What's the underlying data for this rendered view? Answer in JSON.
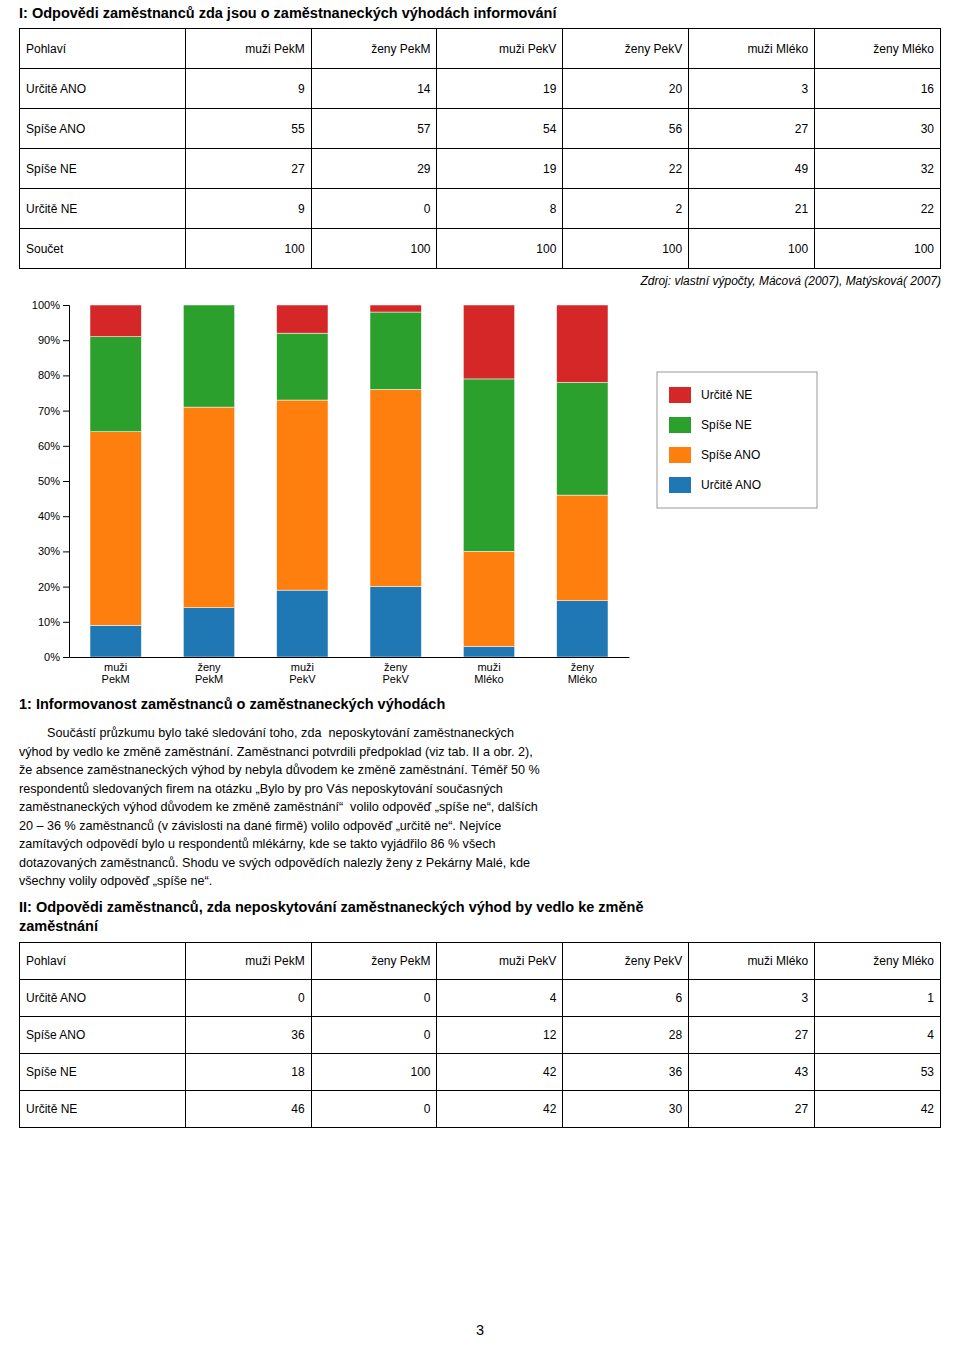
{
  "chart_data": {
    "type": "bar",
    "stacked": true,
    "title": "1: Informovanost zaměstnanců o zaměstnaneckých výhodách",
    "categories": [
      "muži\nPekM",
      "ženy\nPekM",
      "muži\nPekV",
      "ženy\nPekV",
      "muži\nMléko",
      "ženy\nMléko"
    ],
    "series": [
      {
        "name": "Určitě ANO",
        "values": [
          9,
          14,
          19,
          20,
          3,
          16
        ]
      },
      {
        "name": "Spíše ANO",
        "values": [
          55,
          57,
          54,
          56,
          27,
          30
        ]
      },
      {
        "name": "Spíše NE",
        "values": [
          27,
          29,
          19,
          22,
          49,
          32
        ]
      },
      {
        "name": "Určitě NE",
        "values": [
          9,
          0,
          8,
          2,
          21,
          22
        ]
      }
    ],
    "ylim": [
      0,
      100
    ],
    "yticks": [
      {
        "value": 0,
        "label": "0%"
      },
      {
        "value": 10,
        "label": "10%"
      },
      {
        "value": 20,
        "label": "20%"
      },
      {
        "value": 30,
        "label": "30%"
      },
      {
        "value": 40,
        "label": "40%"
      },
      {
        "value": 50,
        "label": "50%"
      },
      {
        "value": 60,
        "label": "60%"
      },
      {
        "value": 70,
        "label": "70%"
      },
      {
        "value": 80,
        "label": "80%"
      },
      {
        "value": 90,
        "label": "90%"
      },
      {
        "value": 100,
        "label": "100%"
      }
    ],
    "grid": false,
    "legend": "right"
  },
  "page": {
    "title_I": "I: Odpovědi zaměstnanců zda jsou o zaměstnaneckých výhodách informování",
    "table1": {
      "header": [
        "Pohlaví",
        "muži PekM",
        "ženy PekM",
        "muži PekV",
        "ženy PekV",
        "muži Mléko",
        "ženy Mléko"
      ],
      "rows": [
        [
          "Určitě ANO",
          "9",
          "14",
          "19",
          "20",
          "3",
          "16"
        ],
        [
          "Spíše ANO",
          "55",
          "57",
          "54",
          "56",
          "27",
          "30"
        ],
        [
          "Spíše NE",
          "27",
          "29",
          "19",
          "22",
          "49",
          "32"
        ],
        [
          "Určitě NE",
          "9",
          "0",
          "8",
          "2",
          "21",
          "22"
        ],
        [
          "Součet",
          "100",
          "100",
          "100",
          "100",
          "100",
          "100"
        ]
      ]
    },
    "source_text": "Zdroj: vlastní výpočty, Mácová (2007), Matýsková( 2007)",
    "body_lines": [
      "        Součástí průzkumu bylo také sledování toho, zda  neposkytování zaměstnaneckých",
      "výhod by vedlo ke změně zaměstnání. Zaměstnanci potvrdili předpoklad (viz tab. II a obr. 2),",
      "že absence zaměstnaneckých výhod by nebyla důvodem ke změně zaměstnání. Téměř 50 %",
      "respondentů sledovaných firem na otázku „Bylo by pro Vás neposkytování současných",
      "zaměstnaneckých výhod důvodem ke změně zaměstnání“  volilo odpověď „spíše ne“, dalších",
      "20 – 36 % zaměstnanců (v závislosti na dané firmě) volilo odpověď „určitě ne“. Nejvíce",
      "zamítavých odpovědí bylo u respondentů mlékárny, kde se takto vyjádřilo 86 % všech",
      "dotazovaných zaměstnanců. Shodu ve svých odpovědích nalezly ženy z Pekárny Malé, kde",
      "všechny volily odpověď „spíše ne“."
    ],
    "title_II": [
      "II: Odpovědi zaměstnanců, zda neposkytování zaměstnaneckých výhod by vedlo ke změně",
      "zaměstnání"
    ],
    "table2": {
      "header": [
        "Pohlaví",
        "muži PekM",
        "ženy PekM",
        "muži PekV",
        "ženy PekV",
        "muži Mléko",
        "ženy Mléko"
      ],
      "rows": [
        [
          "Určitě ANO",
          "0",
          "0",
          "4",
          "6",
          "3",
          "1"
        ],
        [
          "Spíše ANO",
          "36",
          "0",
          "12",
          "28",
          "27",
          "4"
        ],
        [
          "Spíše NE",
          "18",
          "100",
          "42",
          "36",
          "43",
          "53"
        ],
        [
          "Určitě NE",
          "46",
          "0",
          "42",
          "30",
          "27",
          "42"
        ]
      ]
    },
    "page_number": "3"
  }
}
